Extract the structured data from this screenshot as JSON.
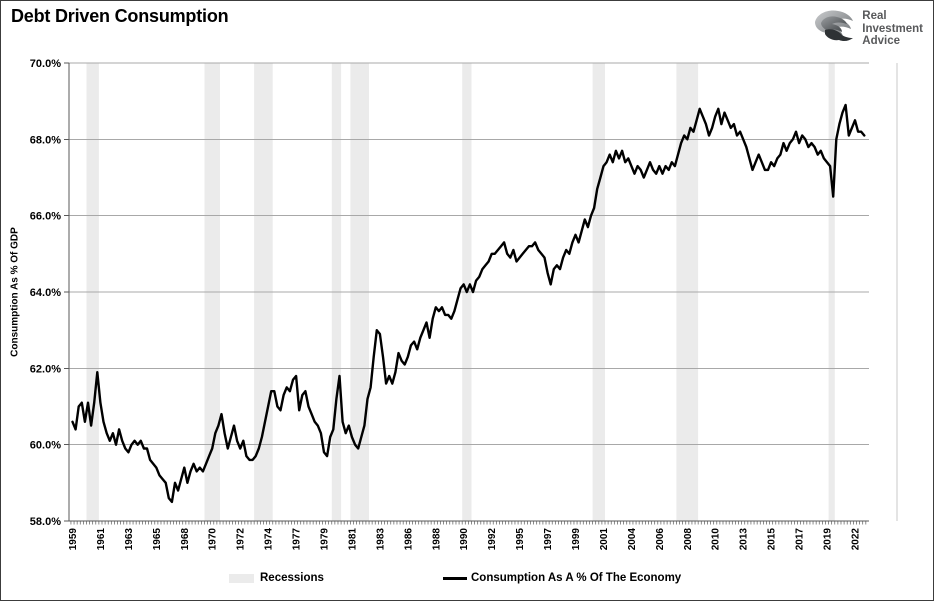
{
  "header": {
    "title": "Debt Driven Consumption"
  },
  "logo": {
    "name": "Real Investment Advice",
    "lines": [
      "Real",
      "Investment",
      "Advice"
    ]
  },
  "legend": {
    "items": [
      {
        "label": "Recessions",
        "swatch": "recession-band"
      },
      {
        "label": "Consumption As A % Of The Economy",
        "swatch": "line"
      }
    ]
  },
  "colors": {
    "line": "#000000",
    "recession_band": "#ebebeb",
    "gridline": "#a8a8a8",
    "axis": "#595959",
    "plot_right_border": "#c9c9c9",
    "logo_text": "#58595b"
  },
  "chart_data": {
    "type": "line",
    "title": "Debt Driven Consumption",
    "xlabel": "",
    "ylabel": "Consumption As % Of GDP",
    "ylim": [
      58,
      70
    ],
    "yticks": [
      58,
      60,
      62,
      64,
      66,
      68,
      70
    ],
    "ytick_labels": [
      "58.0%",
      "60.0%",
      "62.0%",
      "64.0%",
      "66.0%",
      "68.0%",
      "70.0%"
    ],
    "grid": "horizontal",
    "legend_position": "bottom",
    "x_frequency": "quarterly",
    "x_start": "1959Q1",
    "x_end": "2022Q4",
    "xtick_step_quarters": 9,
    "xtick_labels": [
      "1959",
      "1961",
      "1963",
      "1965",
      "1968",
      "1970",
      "1972",
      "1974",
      "1977",
      "1979",
      "1981",
      "1983",
      "1986",
      "1988",
      "1990",
      "1992",
      "1995",
      "1997",
      "1999",
      "2001",
      "2004",
      "2006",
      "2008",
      "2010",
      "2013",
      "2015",
      "2017",
      "2019",
      "2022"
    ],
    "recessions": [
      {
        "start": "1960Q2",
        "end": "1961Q1"
      },
      {
        "start": "1969Q4",
        "end": "1970Q4"
      },
      {
        "start": "1973Q4",
        "end": "1975Q1"
      },
      {
        "start": "1980Q1",
        "end": "1980Q3"
      },
      {
        "start": "1981Q3",
        "end": "1982Q4"
      },
      {
        "start": "1990Q3",
        "end": "1991Q1"
      },
      {
        "start": "2001Q1",
        "end": "2001Q4"
      },
      {
        "start": "2007Q4",
        "end": "2009Q2"
      },
      {
        "start": "2020Q1",
        "end": "2020Q2"
      }
    ],
    "series": [
      {
        "name": "Consumption As A % Of The Economy",
        "color": "#000000",
        "values": [
          60.6,
          60.4,
          61.0,
          61.1,
          60.6,
          61.1,
          60.5,
          61.1,
          61.9,
          61.1,
          60.6,
          60.3,
          60.1,
          60.3,
          60.0,
          60.4,
          60.1,
          59.9,
          59.8,
          60.0,
          60.1,
          60.0,
          60.1,
          59.9,
          59.9,
          59.6,
          59.5,
          59.4,
          59.2,
          59.1,
          59.0,
          58.6,
          58.5,
          59.0,
          58.8,
          59.1,
          59.4,
          59.0,
          59.3,
          59.5,
          59.3,
          59.4,
          59.3,
          59.5,
          59.7,
          59.9,
          60.3,
          60.5,
          60.8,
          60.3,
          59.9,
          60.2,
          60.5,
          60.1,
          59.9,
          60.1,
          59.7,
          59.6,
          59.6,
          59.7,
          59.9,
          60.2,
          60.6,
          61.0,
          61.4,
          61.4,
          61.0,
          60.9,
          61.3,
          61.5,
          61.4,
          61.7,
          61.8,
          60.9,
          61.3,
          61.4,
          61.0,
          60.8,
          60.6,
          60.5,
          60.3,
          59.8,
          59.7,
          60.2,
          60.4,
          61.2,
          61.8,
          60.6,
          60.3,
          60.5,
          60.2,
          60.0,
          59.9,
          60.2,
          60.5,
          61.2,
          61.5,
          62.3,
          63.0,
          62.9,
          62.3,
          61.6,
          61.8,
          61.6,
          61.9,
          62.4,
          62.2,
          62.1,
          62.3,
          62.6,
          62.7,
          62.5,
          62.8,
          63.0,
          63.2,
          62.8,
          63.3,
          63.6,
          63.5,
          63.6,
          63.4,
          63.4,
          63.3,
          63.5,
          63.8,
          64.1,
          64.2,
          64.0,
          64.2,
          64.0,
          64.3,
          64.4,
          64.6,
          64.7,
          64.8,
          65.0,
          65.0,
          65.1,
          65.2,
          65.3,
          65.0,
          64.9,
          65.1,
          64.8,
          64.9,
          65.0,
          65.1,
          65.2,
          65.2,
          65.3,
          65.1,
          65.0,
          64.9,
          64.5,
          64.2,
          64.6,
          64.7,
          64.6,
          64.9,
          65.1,
          65.0,
          65.3,
          65.5,
          65.3,
          65.6,
          65.9,
          65.7,
          66.0,
          66.2,
          66.7,
          67.0,
          67.3,
          67.4,
          67.6,
          67.4,
          67.7,
          67.5,
          67.7,
          67.4,
          67.5,
          67.3,
          67.1,
          67.3,
          67.2,
          67.0,
          67.2,
          67.4,
          67.2,
          67.1,
          67.3,
          67.1,
          67.3,
          67.2,
          67.4,
          67.3,
          67.6,
          67.9,
          68.1,
          68.0,
          68.3,
          68.2,
          68.5,
          68.8,
          68.6,
          68.4,
          68.1,
          68.3,
          68.6,
          68.8,
          68.4,
          68.7,
          68.5,
          68.3,
          68.4,
          68.1,
          68.2,
          68.0,
          67.8,
          67.5,
          67.2,
          67.4,
          67.6,
          67.4,
          67.2,
          67.2,
          67.4,
          67.3,
          67.5,
          67.6,
          67.9,
          67.7,
          67.9,
          68.0,
          68.2,
          67.9,
          68.1,
          68.0,
          67.8,
          67.9,
          67.8,
          67.6,
          67.7,
          67.5,
          67.4,
          67.3,
          66.5,
          68.0,
          68.4,
          68.7,
          68.9,
          68.1,
          68.3,
          68.5,
          68.2,
          68.2,
          68.1
        ]
      }
    ]
  }
}
